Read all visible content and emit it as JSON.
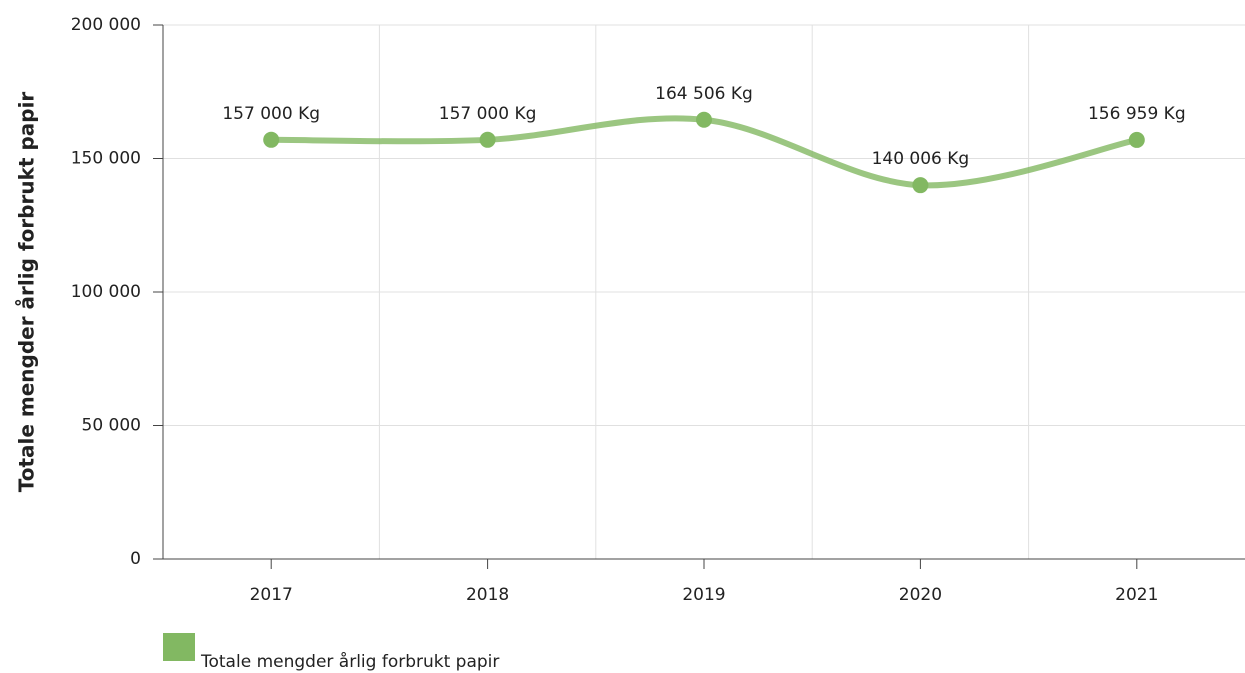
{
  "chart_data": {
    "type": "line",
    "y_label": "Totale mengder årlig forbrukt papir",
    "categories": [
      "2017",
      "2018",
      "2019",
      "2020",
      "2021"
    ],
    "series": [
      {
        "name": "Totale mengder årlig forbrukt papir",
        "color": "#82b862",
        "values": [
          157000,
          157000,
          164506,
          140006,
          156959
        ],
        "value_labels": [
          "157 000 Kg",
          "157 000 Kg",
          "164 506 Kg",
          "140 006 Kg",
          "156 959 Kg"
        ]
      }
    ],
    "ylim": [
      0,
      200000
    ],
    "yticks": [
      0,
      {
        "value": 50000,
        "label": "50 000"
      },
      {
        "value": 100000,
        "label": "100 000"
      },
      {
        "value": 150000,
        "label": "150 000"
      },
      {
        "value": 200000,
        "label": "200 000"
      }
    ],
    "grid": true
  }
}
